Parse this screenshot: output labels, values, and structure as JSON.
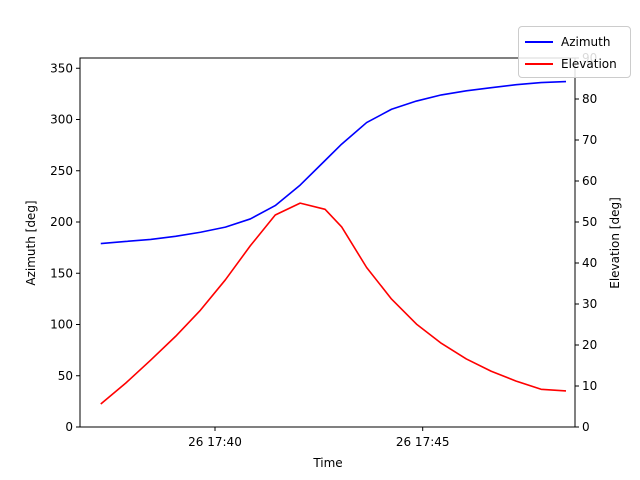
{
  "chart_data": {
    "type": "line",
    "title": "",
    "xlabel": "Time",
    "ylabel": "Azimuth [deg]",
    "y2label": "Elevation [deg]",
    "xlim_minutes": [
      "17:36:45",
      "17:48:40"
    ],
    "ylim": [
      0,
      360
    ],
    "y2lim": [
      0,
      90
    ],
    "x_ticks": [
      {
        "time": "17:40",
        "label": "26 17:40"
      },
      {
        "time": "17:45",
        "label": "26 17:45"
      }
    ],
    "y_ticks": [
      0,
      50,
      100,
      150,
      200,
      250,
      300,
      350
    ],
    "y2_ticks": [
      0,
      10,
      20,
      30,
      40,
      50,
      60,
      70,
      80,
      90
    ],
    "grid": false,
    "legend_position": "top-right (outside axes)",
    "x": [
      "17:37:15",
      "17:37:51",
      "17:38:27",
      "17:39:03",
      "17:39:39",
      "17:40:15",
      "17:40:51",
      "17:41:27",
      "17:42:03",
      "17:42:39",
      "17:43:03",
      "17:43:39",
      "17:44:15",
      "17:44:51",
      "17:45:27",
      "17:46:03",
      "17:46:39",
      "17:47:15",
      "17:47:51",
      "17:48:27"
    ],
    "series": [
      {
        "name": "Azimuth",
        "color": "#0000ff",
        "axis": "left",
        "values": [
          179,
          181,
          183,
          186,
          190,
          195,
          203,
          216,
          236,
          260,
          276,
          297,
          310,
          318,
          324,
          328,
          331,
          334,
          336,
          337
        ]
      },
      {
        "name": "Elevation",
        "color": "#ff0000",
        "axis": "right",
        "values": [
          5.6,
          10.7,
          16.3,
          22.1,
          28.5,
          35.9,
          44.2,
          51.7,
          54.6,
          53.1,
          48.8,
          38.9,
          31.2,
          25.1,
          20.4,
          16.6,
          13.6,
          11.2,
          9.2,
          8.8
        ]
      }
    ]
  },
  "legend": {
    "items": [
      {
        "label": "Azimuth",
        "color": "#0000ff"
      },
      {
        "label": "Elevation",
        "color": "#ff0000"
      }
    ]
  }
}
